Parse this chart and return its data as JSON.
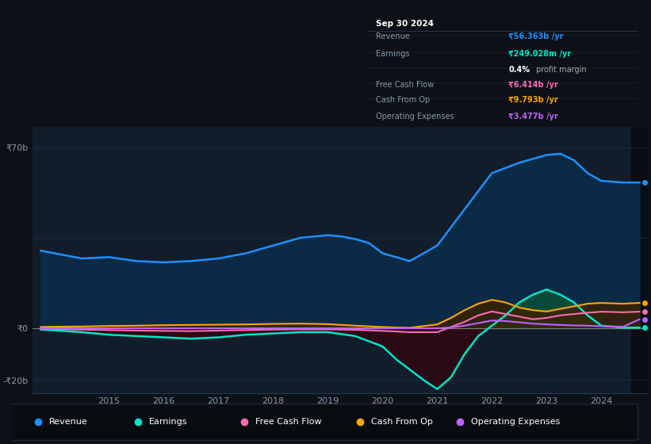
{
  "bg_color": "#0d1117",
  "plot_bg_color": "#111d2b",
  "grid_color": "#1a2a3a",
  "ylim": [
    -25000000000,
    78000000000
  ],
  "revenue_color": "#1e90ff",
  "revenue_fill_color": "#0a2a45",
  "earnings_color": "#00e5c8",
  "earnings_pos_fill": "#0a4a3a",
  "earnings_neg_fill": "#2a0a15",
  "fcf_color": "#ff69b4",
  "cashop_color": "#ffa500",
  "opex_color": "#bf5fff",
  "legend_dot_colors": [
    "#1e90ff",
    "#00e5c8",
    "#ff69b4",
    "#ffa500",
    "#bf5fff"
  ],
  "legend_labels": [
    "Revenue",
    "Earnings",
    "Free Cash Flow",
    "Cash From Op",
    "Operating Expenses"
  ],
  "info_box_title": "Sep 30 2024",
  "revenue_x": [
    2013.75,
    2014.0,
    2014.5,
    2015.0,
    2015.5,
    2016.0,
    2016.5,
    2017.0,
    2017.5,
    2018.0,
    2018.5,
    2019.0,
    2019.25,
    2019.5,
    2019.75,
    2020.0,
    2020.5,
    2021.0,
    2021.5,
    2022.0,
    2022.5,
    2023.0,
    2023.25,
    2023.5,
    2023.75,
    2024.0,
    2024.4,
    2024.7
  ],
  "revenue_y": [
    30000000000.0,
    29000000000.0,
    27000000000.0,
    27500000000.0,
    26000000000.0,
    25500000000.0,
    26000000000.0,
    27000000000.0,
    29000000000.0,
    32000000000.0,
    35000000000.0,
    36000000000.0,
    35500000000.0,
    34500000000.0,
    33000000000.0,
    29000000000.0,
    26000000000.0,
    32000000000.0,
    46000000000.0,
    60000000000.0,
    64000000000.0,
    67000000000.0,
    67500000000.0,
    65000000000.0,
    60000000000.0,
    57000000000.0,
    56363000000.0,
    56363000000.0
  ],
  "earnings_x": [
    2013.75,
    2014.0,
    2014.5,
    2015.0,
    2015.5,
    2016.0,
    2016.5,
    2017.0,
    2017.5,
    2018.0,
    2018.5,
    2019.0,
    2019.5,
    2020.0,
    2020.25,
    2020.5,
    2020.75,
    2021.0,
    2021.25,
    2021.5,
    2021.75,
    2022.0,
    2022.25,
    2022.5,
    2022.75,
    2023.0,
    2023.25,
    2023.5,
    2023.75,
    2024.0,
    2024.4,
    2024.7
  ],
  "earnings_y": [
    -500000000.0,
    -800000000.0,
    -1500000000.0,
    -2500000000.0,
    -3000000000.0,
    -3500000000.0,
    -4000000000.0,
    -3500000000.0,
    -2500000000.0,
    -2000000000.0,
    -1500000000.0,
    -1500000000.0,
    -3000000000.0,
    -7000000000.0,
    -12000000000.0,
    -16000000000.0,
    -20000000000.0,
    -23500000000.0,
    -19000000000.0,
    -10000000000.0,
    -3000000000.0,
    1000000000.0,
    5000000000.0,
    10000000000.0,
    13000000000.0,
    15000000000.0,
    13000000000.0,
    10000000000.0,
    5000000000.0,
    1000000000.0,
    249000000.0,
    249000000.0
  ],
  "cashop_x": [
    2013.75,
    2014.0,
    2014.5,
    2015.0,
    2015.5,
    2016.0,
    2016.5,
    2017.0,
    2017.5,
    2018.0,
    2018.5,
    2019.0,
    2019.5,
    2020.0,
    2020.25,
    2020.5,
    2021.0,
    2021.25,
    2021.5,
    2021.75,
    2022.0,
    2022.25,
    2022.5,
    2022.75,
    2023.0,
    2023.25,
    2023.5,
    2023.75,
    2024.0,
    2024.4,
    2024.7
  ],
  "cashop_y": [
    500000000.0,
    600000000.0,
    700000000.0,
    900000000.0,
    1000000000.0,
    1200000000.0,
    1300000000.0,
    1400000000.0,
    1500000000.0,
    1700000000.0,
    1800000000.0,
    1600000000.0,
    1000000000.0,
    500000000.0,
    300000000.0,
    200000000.0,
    1500000000.0,
    4000000000.0,
    7000000000.0,
    9500000000.0,
    11000000000.0,
    10000000000.0,
    8000000000.0,
    7000000000.0,
    6500000000.0,
    7500000000.0,
    8500000000.0,
    9500000000.0,
    9793000000.0,
    9500000000.0,
    9793000000.0
  ],
  "fcf_x": [
    2013.75,
    2014.0,
    2014.5,
    2015.0,
    2015.5,
    2016.0,
    2016.5,
    2017.0,
    2017.5,
    2018.0,
    2018.5,
    2019.0,
    2019.5,
    2020.0,
    2020.5,
    2021.0,
    2021.25,
    2021.5,
    2021.75,
    2022.0,
    2022.25,
    2022.5,
    2022.75,
    2023.0,
    2023.25,
    2023.5,
    2023.75,
    2024.0,
    2024.4,
    2024.7
  ],
  "fcf_y": [
    -200000000.0,
    -300000000.0,
    -500000000.0,
    -700000000.0,
    -900000000.0,
    -1000000000.0,
    -1100000000.0,
    -900000000.0,
    -700000000.0,
    -500000000.0,
    -400000000.0,
    -400000000.0,
    -600000000.0,
    -1000000000.0,
    -1500000000.0,
    -1500000000.0,
    500000000.0,
    2500000000.0,
    5000000000.0,
    6500000000.0,
    5500000000.0,
    4500000000.0,
    3500000000.0,
    4000000000.0,
    5000000000.0,
    5500000000.0,
    6000000000.0,
    6414000000.0,
    6200000000.0,
    6414000000.0
  ],
  "opex_x": [
    2013.75,
    2014.0,
    2014.5,
    2015.0,
    2019.0,
    2020.0,
    2020.5,
    2021.0,
    2021.25,
    2021.5,
    2021.75,
    2022.0,
    2022.25,
    2022.5,
    2022.75,
    2023.0,
    2023.25,
    2023.5,
    2023.75,
    2024.0,
    2024.4,
    2024.7
  ],
  "opex_y": [
    0,
    0,
    0,
    0,
    0,
    0,
    0,
    0,
    300000000.0,
    1000000000.0,
    2000000000.0,
    3000000000.0,
    2800000000.0,
    2300000000.0,
    1800000000.0,
    1500000000.0,
    1300000000.0,
    1100000000.0,
    1000000000.0,
    800000000.0,
    600000000.0,
    3477000000.0
  ]
}
